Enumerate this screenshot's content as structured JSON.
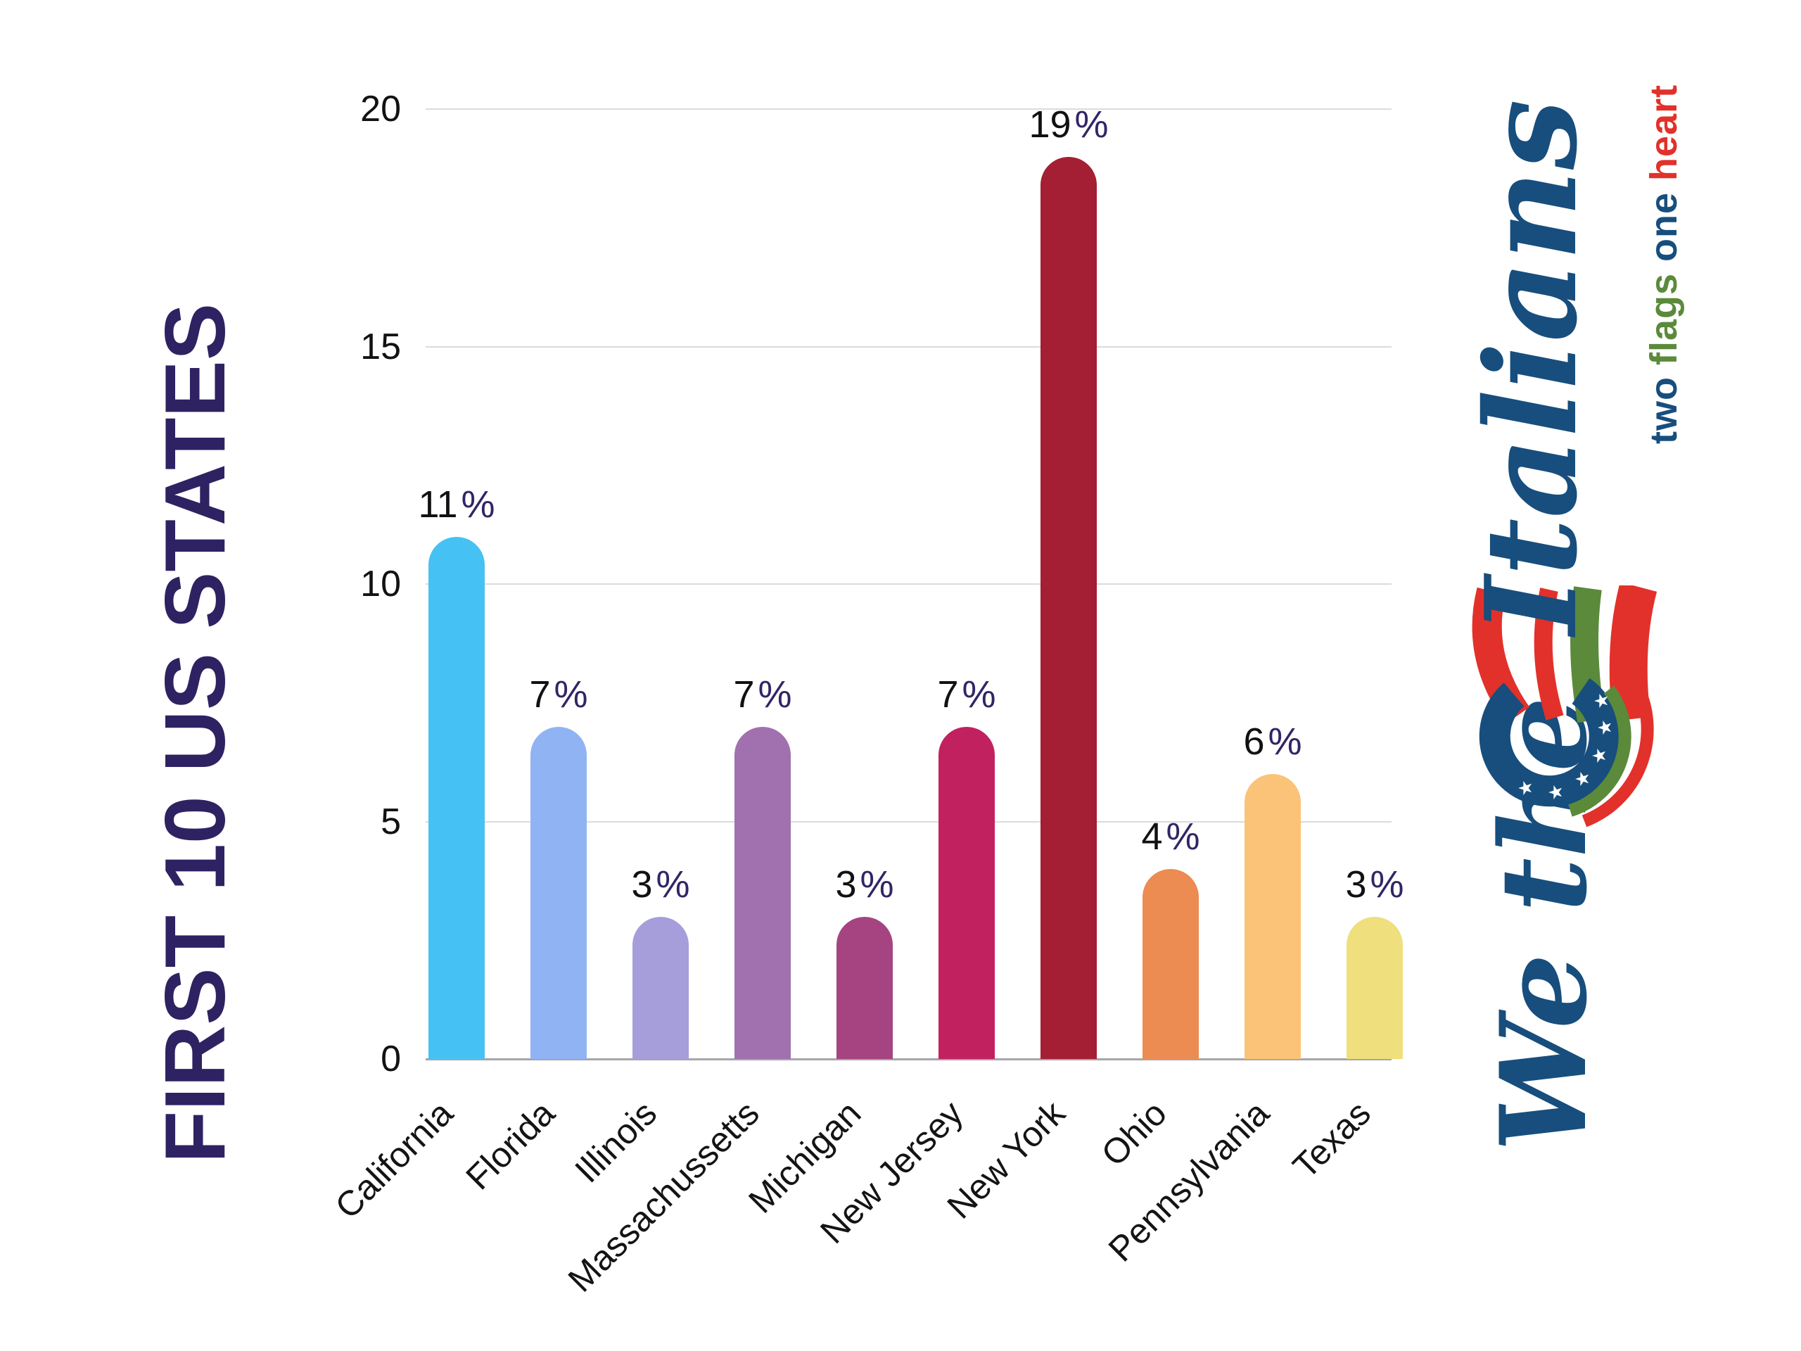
{
  "chart_data": {
    "type": "bar",
    "title": "FIRST 10 US STATES",
    "categories": [
      "California",
      "Florida",
      "Illinois",
      "Massachussetts",
      "Michigan",
      "New Jersey",
      "New York",
      "Ohio",
      "Pennsylvania",
      "Texas"
    ],
    "values": [
      11,
      7,
      3,
      7,
      3,
      7,
      19,
      4,
      6,
      3
    ],
    "value_suffix": "%",
    "xlabel": "",
    "ylabel": "",
    "ylim": [
      0,
      20
    ],
    "yticks": [
      0,
      5,
      10,
      15,
      20
    ],
    "grid": true,
    "legend": false,
    "bar_colors": [
      "#45C2F3",
      "#90B3F4",
      "#A59EDB",
      "#A070AF",
      "#A54480",
      "#C22160",
      "#A41F33",
      "#EC8B52",
      "#FBC377",
      "#EFDF7D"
    ],
    "number_color": "#111111",
    "suffix_color": "#322565",
    "axis_color": "#A6A6AA",
    "grid_color": "#DBDBDB",
    "tick_color": "#121212",
    "title_color": "#2F2262"
  },
  "logo": {
    "prefix": "We the",
    "brand": "Italians",
    "brand_color": "#174E7D",
    "flag_red": "#E2312A",
    "flag_green": "#5B8A3B",
    "flag_blue": "#174E7D",
    "tagline": [
      {
        "text": "two",
        "color": "#174E7D"
      },
      {
        "text": "flags",
        "color": "#5B8A3B"
      },
      {
        "text": "one",
        "color": "#174E7D"
      },
      {
        "text": "heart",
        "color": "#E2312A"
      }
    ]
  }
}
